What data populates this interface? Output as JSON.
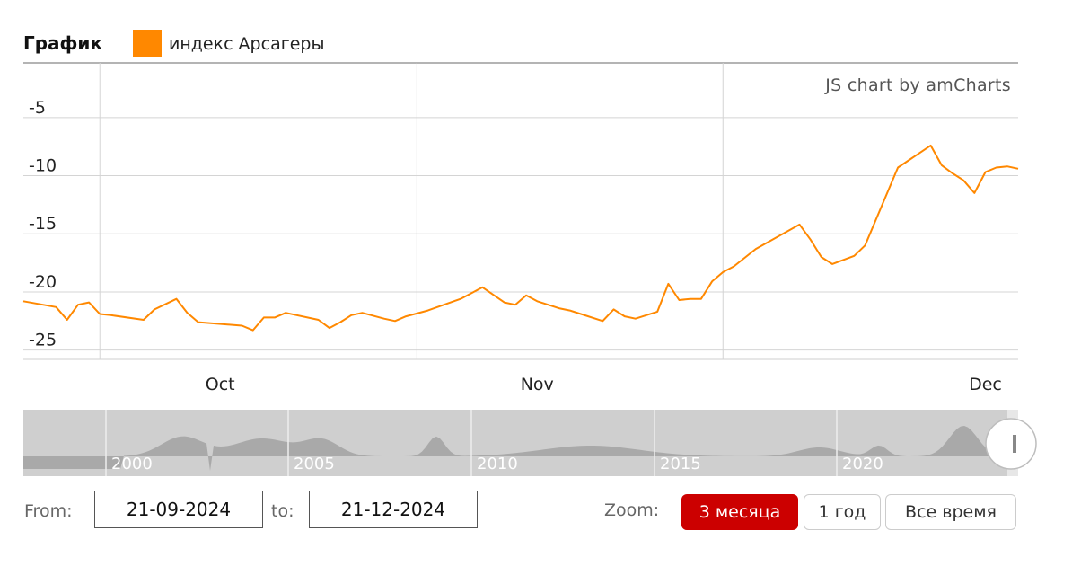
{
  "legend": {
    "title": "График",
    "series_label": "индекс Арсагеры",
    "series_color": "#ff8800"
  },
  "credit": "JS chart by amCharts",
  "chart_data": {
    "type": "line",
    "title": "График",
    "xlabel": "",
    "ylabel": "",
    "ylim": [
      -25.8,
      -0.3
    ],
    "y_ticks": [
      -5,
      -10,
      -15,
      -20,
      -25
    ],
    "x_ticks": [
      "Oct",
      "Nov",
      "Dec"
    ],
    "x_range": [
      "2024-09-21",
      "2024-12-21"
    ],
    "grid": true,
    "legend_position": "top-left",
    "series": [
      {
        "name": "индекс Арсагеры",
        "color": "#ff8800",
        "x": [
          "2024-09-21",
          "2024-09-24",
          "2024-09-25",
          "2024-09-26",
          "2024-09-27",
          "2024-09-28",
          "2024-09-29",
          "2024-10-02",
          "2024-10-03",
          "2024-10-05",
          "2024-10-06",
          "2024-10-07",
          "2024-10-11",
          "2024-10-12",
          "2024-10-13",
          "2024-10-14",
          "2024-10-15",
          "2024-10-18",
          "2024-10-19",
          "2024-10-20",
          "2024-10-21",
          "2024-10-22",
          "2024-10-24",
          "2024-10-25",
          "2024-10-26",
          "2024-10-28",
          "2024-10-31",
          "2024-11-01",
          "2024-11-02",
          "2024-11-04",
          "2024-11-05",
          "2024-11-06",
          "2024-11-07",
          "2024-11-09",
          "2024-11-10",
          "2024-11-11",
          "2024-11-13",
          "2024-11-14",
          "2024-11-15",
          "2024-11-16",
          "2024-11-17",
          "2024-11-18",
          "2024-11-19",
          "2024-11-20",
          "2024-11-21",
          "2024-11-22",
          "2024-11-23",
          "2024-11-24",
          "2024-11-25",
          "2024-11-27",
          "2024-12-01",
          "2024-12-02",
          "2024-12-03",
          "2024-12-04",
          "2024-12-06",
          "2024-12-07",
          "2024-12-10",
          "2024-12-13",
          "2024-12-14",
          "2024-12-15",
          "2024-12-16",
          "2024-12-17",
          "2024-12-18",
          "2024-12-19",
          "2024-12-20",
          "2024-12-21"
        ],
        "values": [
          -20.8,
          -21.3,
          -22.4,
          -21.1,
          -20.9,
          -21.9,
          -22.0,
          -22.4,
          -21.5,
          -20.6,
          -21.8,
          -22.6,
          -22.9,
          -23.3,
          -22.2,
          -22.2,
          -21.8,
          -22.4,
          -23.1,
          -22.6,
          -22.0,
          -21.8,
          -22.3,
          -22.5,
          -22.1,
          -21.6,
          -20.6,
          -20.1,
          -19.6,
          -20.9,
          -21.1,
          -20.3,
          -20.8,
          -21.4,
          -21.6,
          -21.9,
          -22.5,
          -21.5,
          -22.1,
          -22.3,
          -22.0,
          -21.7,
          -19.3,
          -20.7,
          -20.6,
          -20.6,
          -19.1,
          -18.3,
          -17.8,
          -16.3,
          -14.2,
          -15.5,
          -17.0,
          -17.6,
          -16.9,
          -16.0,
          -9.3,
          -7.4,
          -9.1,
          -9.8,
          -10.4,
          -11.5,
          -9.7,
          -9.3,
          -9.2,
          -9.4
        ]
      }
    ],
    "navigator": {
      "year_labels": [
        "2000",
        "2005",
        "2010",
        "2015",
        "2020"
      ]
    }
  },
  "controls": {
    "from_label": "From:",
    "from_value": "21-09-2024",
    "to_label": "to:",
    "to_value": "21-12-2024",
    "zoom_label": "Zoom:",
    "zoom_buttons": [
      {
        "label": "3 месяца",
        "active": true
      },
      {
        "label": "1 год",
        "active": false
      },
      {
        "label": "Все время",
        "active": false
      }
    ]
  }
}
